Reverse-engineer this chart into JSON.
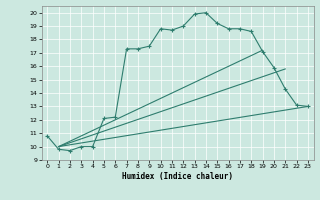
{
  "title": "",
  "xlabel": "Humidex (Indice chaleur)",
  "bg_color": "#cce8e0",
  "grid_color": "#ffffff",
  "line_color": "#2e7d6e",
  "xlim": [
    -0.5,
    23.5
  ],
  "ylim": [
    9,
    20.5
  ],
  "xticks": [
    0,
    1,
    2,
    3,
    4,
    5,
    6,
    7,
    8,
    9,
    10,
    11,
    12,
    13,
    14,
    15,
    16,
    17,
    18,
    19,
    20,
    21,
    22,
    23
  ],
  "yticks": [
    9,
    10,
    11,
    12,
    13,
    14,
    15,
    16,
    17,
    18,
    19,
    20
  ],
  "line1_x": [
    0,
    1,
    2,
    3,
    4,
    5,
    6,
    7,
    8,
    9,
    10,
    11,
    12,
    13,
    14,
    15,
    16,
    17,
    18,
    19,
    20,
    21,
    22,
    23
  ],
  "line1_y": [
    10.8,
    9.8,
    9.7,
    10.0,
    10.0,
    12.1,
    12.2,
    17.3,
    17.3,
    17.5,
    18.8,
    18.7,
    19.0,
    19.9,
    20.0,
    19.2,
    18.8,
    18.8,
    18.6,
    17.1,
    15.9,
    14.3,
    13.1,
    13.0
  ],
  "line2_x": [
    1,
    23
  ],
  "line2_y": [
    10.0,
    13.0
  ],
  "line3_x": [
    1,
    21
  ],
  "line3_y": [
    10.0,
    15.8
  ],
  "line4_x": [
    1,
    19
  ],
  "line4_y": [
    10.0,
    17.2
  ]
}
